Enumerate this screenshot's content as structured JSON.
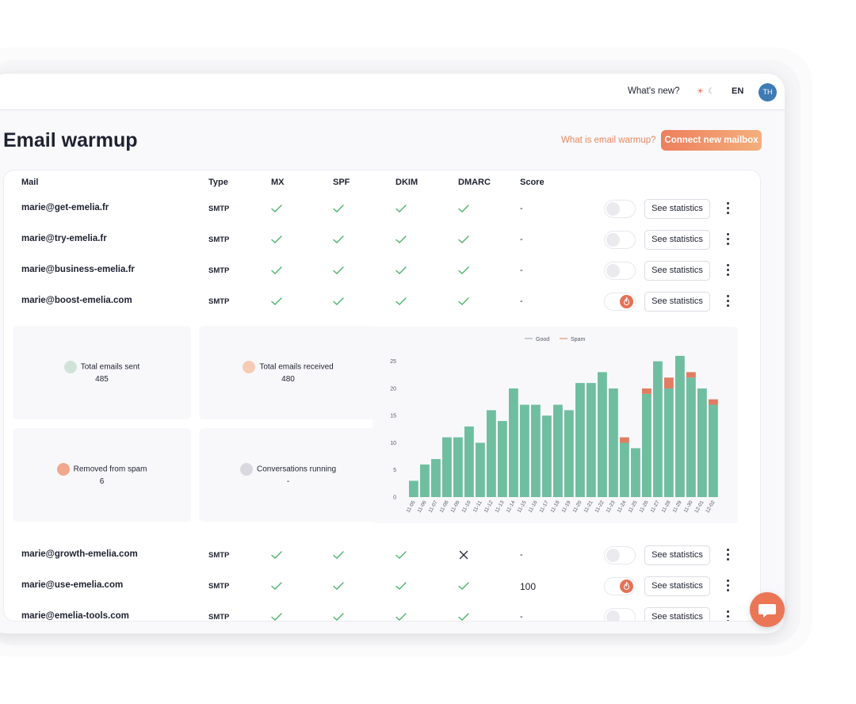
{
  "topbar": {
    "whats_new": "What's new?",
    "language": "EN",
    "avatar_initials": "TH"
  },
  "page": {
    "title": "Email warmup",
    "help_link": "What is email warmup?",
    "connect_button": "Connect new mailbox"
  },
  "table": {
    "headers": {
      "mail": "Mail",
      "type": "Type",
      "mx": "MX",
      "spf": "SPF",
      "dkim": "DKIM",
      "dmarc": "DMARC",
      "score": "Score"
    },
    "see_statistics_label": "See statistics",
    "rows": [
      {
        "mail": "marie@get-emelia.fr",
        "type": "SMTP",
        "mx": true,
        "spf": true,
        "dkim": true,
        "dmarc": true,
        "score": "-",
        "enabled": false
      },
      {
        "mail": "marie@try-emelia.fr",
        "type": "SMTP",
        "mx": true,
        "spf": true,
        "dkim": true,
        "dmarc": true,
        "score": "-",
        "enabled": false
      },
      {
        "mail": "marie@business-emelia.fr",
        "type": "SMTP",
        "mx": true,
        "spf": true,
        "dkim": true,
        "dmarc": true,
        "score": "-",
        "enabled": false
      },
      {
        "mail": "marie@boost-emelia.com",
        "type": "SMTP",
        "mx": true,
        "spf": true,
        "dkim": true,
        "dmarc": true,
        "score": "-",
        "enabled": true
      },
      {
        "mail": "marie@growth-emelia.com",
        "type": "SMTP",
        "mx": true,
        "spf": true,
        "dkim": true,
        "dmarc": false,
        "score": "-",
        "enabled": false
      },
      {
        "mail": "marie@use-emelia.com",
        "type": "SMTP",
        "mx": true,
        "spf": true,
        "dkim": true,
        "dmarc": true,
        "score": "100",
        "enabled": true
      },
      {
        "mail": "marie@emelia-tools.com",
        "type": "SMTP",
        "mx": true,
        "spf": true,
        "dkim": true,
        "dmarc": true,
        "score": "-",
        "enabled": false
      }
    ]
  },
  "stats": {
    "total_sent": {
      "label": "Total emails sent",
      "value": "485"
    },
    "total_received": {
      "label": "Total emails received",
      "value": "480"
    },
    "removed_from_spam": {
      "label": "Removed from spam",
      "value": "6"
    },
    "conversations_running": {
      "label": "Conversations running",
      "value": "-"
    }
  },
  "colors": {
    "good": "#6fbea0",
    "spam": "#e07d62",
    "accent": "#ef7e5d"
  },
  "chart_data": {
    "type": "bar",
    "stacked": true,
    "legend": [
      "Good",
      "Spam"
    ],
    "legend_position": "top-center",
    "categories": [
      "11-05",
      "11-06",
      "11-07",
      "11-08",
      "11-09",
      "11-10",
      "11-11",
      "11-12",
      "11-13",
      "11-14",
      "11-15",
      "11-16",
      "11-17",
      "11-18",
      "11-19",
      "11-20",
      "11-21",
      "11-22",
      "11-23",
      "11-24",
      "11-25",
      "11-26",
      "11-27",
      "11-28",
      "11-29",
      "11-30",
      "12-01",
      "12-02"
    ],
    "series": [
      {
        "name": "Good",
        "values": [
          3,
          6,
          7,
          11,
          11,
          13,
          10,
          16,
          14,
          20,
          17,
          17,
          15,
          17,
          16,
          21,
          21,
          23,
          20,
          10,
          9,
          19,
          25,
          20,
          26,
          22,
          20,
          17
        ]
      },
      {
        "name": "Spam",
        "values": [
          0,
          0,
          0,
          0,
          0,
          0,
          0,
          0,
          0,
          0,
          0,
          0,
          0,
          0,
          0,
          0,
          0,
          0,
          0,
          1,
          0,
          1,
          0,
          2,
          0,
          1,
          0,
          1
        ]
      }
    ],
    "ylim": [
      0,
      27
    ],
    "yticks": [
      0,
      5,
      10,
      15,
      20,
      25
    ]
  }
}
